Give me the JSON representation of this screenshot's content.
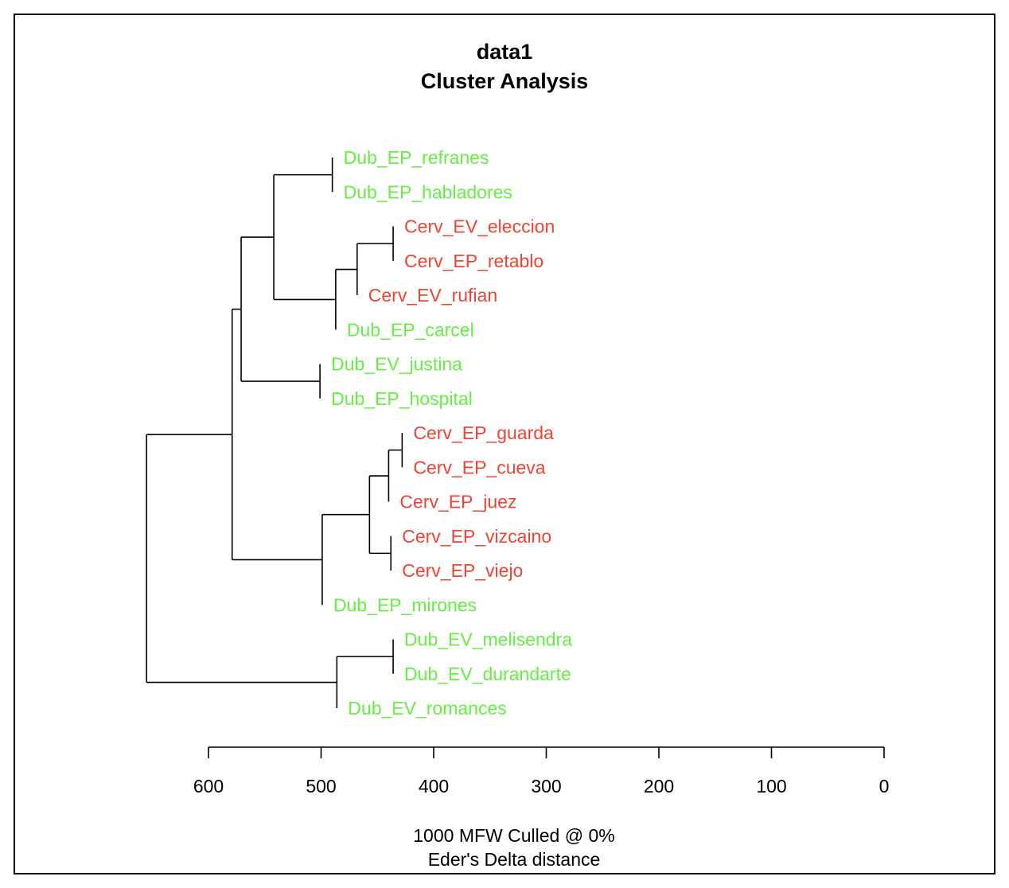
{
  "chart_data": {
    "type": "dendrogram",
    "title": "data1",
    "subtitle": "Cluster Analysis",
    "footer_line1": "1000 MFW  Culled @ 0%",
    "footer_line2": "Eder's Delta distance",
    "axis": {
      "ticks": [
        600,
        500,
        400,
        300,
        200,
        100,
        0
      ],
      "tick_labels": [
        "600",
        "500",
        "400",
        "300",
        "200",
        "100",
        "0"
      ],
      "range": [
        600,
        0
      ]
    },
    "colors": {
      "Dub": "#66ee44",
      "Cerv": "#ee4433",
      "line": "#000000"
    },
    "leaves": [
      {
        "label": "Dub_EP_refranes",
        "group": "Dub"
      },
      {
        "label": "Dub_EP_habladores",
        "group": "Dub"
      },
      {
        "label": "Cerv_EV_eleccion",
        "group": "Cerv"
      },
      {
        "label": "Cerv_EP_retablo",
        "group": "Cerv"
      },
      {
        "label": "Cerv_EV_rufian",
        "group": "Cerv"
      },
      {
        "label": "Dub_EP_carcel",
        "group": "Dub"
      },
      {
        "label": "Dub_EV_justina",
        "group": "Dub"
      },
      {
        "label": "Dub_EP_hospital",
        "group": "Dub"
      },
      {
        "label": "Cerv_EP_guarda",
        "group": "Cerv"
      },
      {
        "label": "Cerv_EP_cueva",
        "group": "Cerv"
      },
      {
        "label": "Cerv_EP_juez",
        "group": "Cerv"
      },
      {
        "label": "Cerv_EP_vizcaino",
        "group": "Cerv"
      },
      {
        "label": "Cerv_EP_viejo",
        "group": "Cerv"
      },
      {
        "label": "Dub_EP_mirones",
        "group": "Dub"
      },
      {
        "label": "Dub_EV_melisendra",
        "group": "Dub"
      },
      {
        "label": "Dub_EV_durandarte",
        "group": "Dub"
      },
      {
        "label": "Dub_EV_romances",
        "group": "Dub"
      }
    ],
    "merges": [
      {
        "id": "n1",
        "children": [
          "Dub_EP_refranes",
          "Dub_EP_habladores"
        ],
        "height": 490
      },
      {
        "id": "n2",
        "children": [
          "Cerv_EV_eleccion",
          "Cerv_EP_retablo"
        ],
        "height": 436
      },
      {
        "id": "n3",
        "children": [
          "n2",
          "Cerv_EV_rufian"
        ],
        "height": 468
      },
      {
        "id": "n4",
        "children": [
          "n3",
          "Dub_EP_carcel"
        ],
        "height": 487
      },
      {
        "id": "n5",
        "children": [
          "n1",
          "n4"
        ],
        "height": 542
      },
      {
        "id": "n6",
        "children": [
          "Dub_EV_justina",
          "Dub_EP_hospital"
        ],
        "height": 501
      },
      {
        "id": "n7",
        "children": [
          "n5",
          "n6"
        ],
        "height": 571
      },
      {
        "id": "n8",
        "children": [
          "Cerv_EP_guarda",
          "Cerv_EP_cueva"
        ],
        "height": 428
      },
      {
        "id": "n9",
        "children": [
          "n8",
          "Cerv_EP_juez"
        ],
        "height": 440
      },
      {
        "id": "n10",
        "children": [
          "Cerv_EP_vizcaino",
          "Cerv_EP_viejo"
        ],
        "height": 438
      },
      {
        "id": "n11",
        "children": [
          "n9",
          "n10"
        ],
        "height": 457
      },
      {
        "id": "n12",
        "children": [
          "n11",
          "Dub_EP_mirones"
        ],
        "height": 499
      },
      {
        "id": "n13",
        "children": [
          "n7",
          "n12"
        ],
        "height": 579
      },
      {
        "id": "n14",
        "children": [
          "Dub_EV_melisendra",
          "Dub_EV_durandarte"
        ],
        "height": 436
      },
      {
        "id": "n15",
        "children": [
          "n14",
          "Dub_EV_romances"
        ],
        "height": 486
      },
      {
        "id": "n16",
        "children": [
          "n13",
          "n15"
        ],
        "height": 655
      }
    ]
  }
}
